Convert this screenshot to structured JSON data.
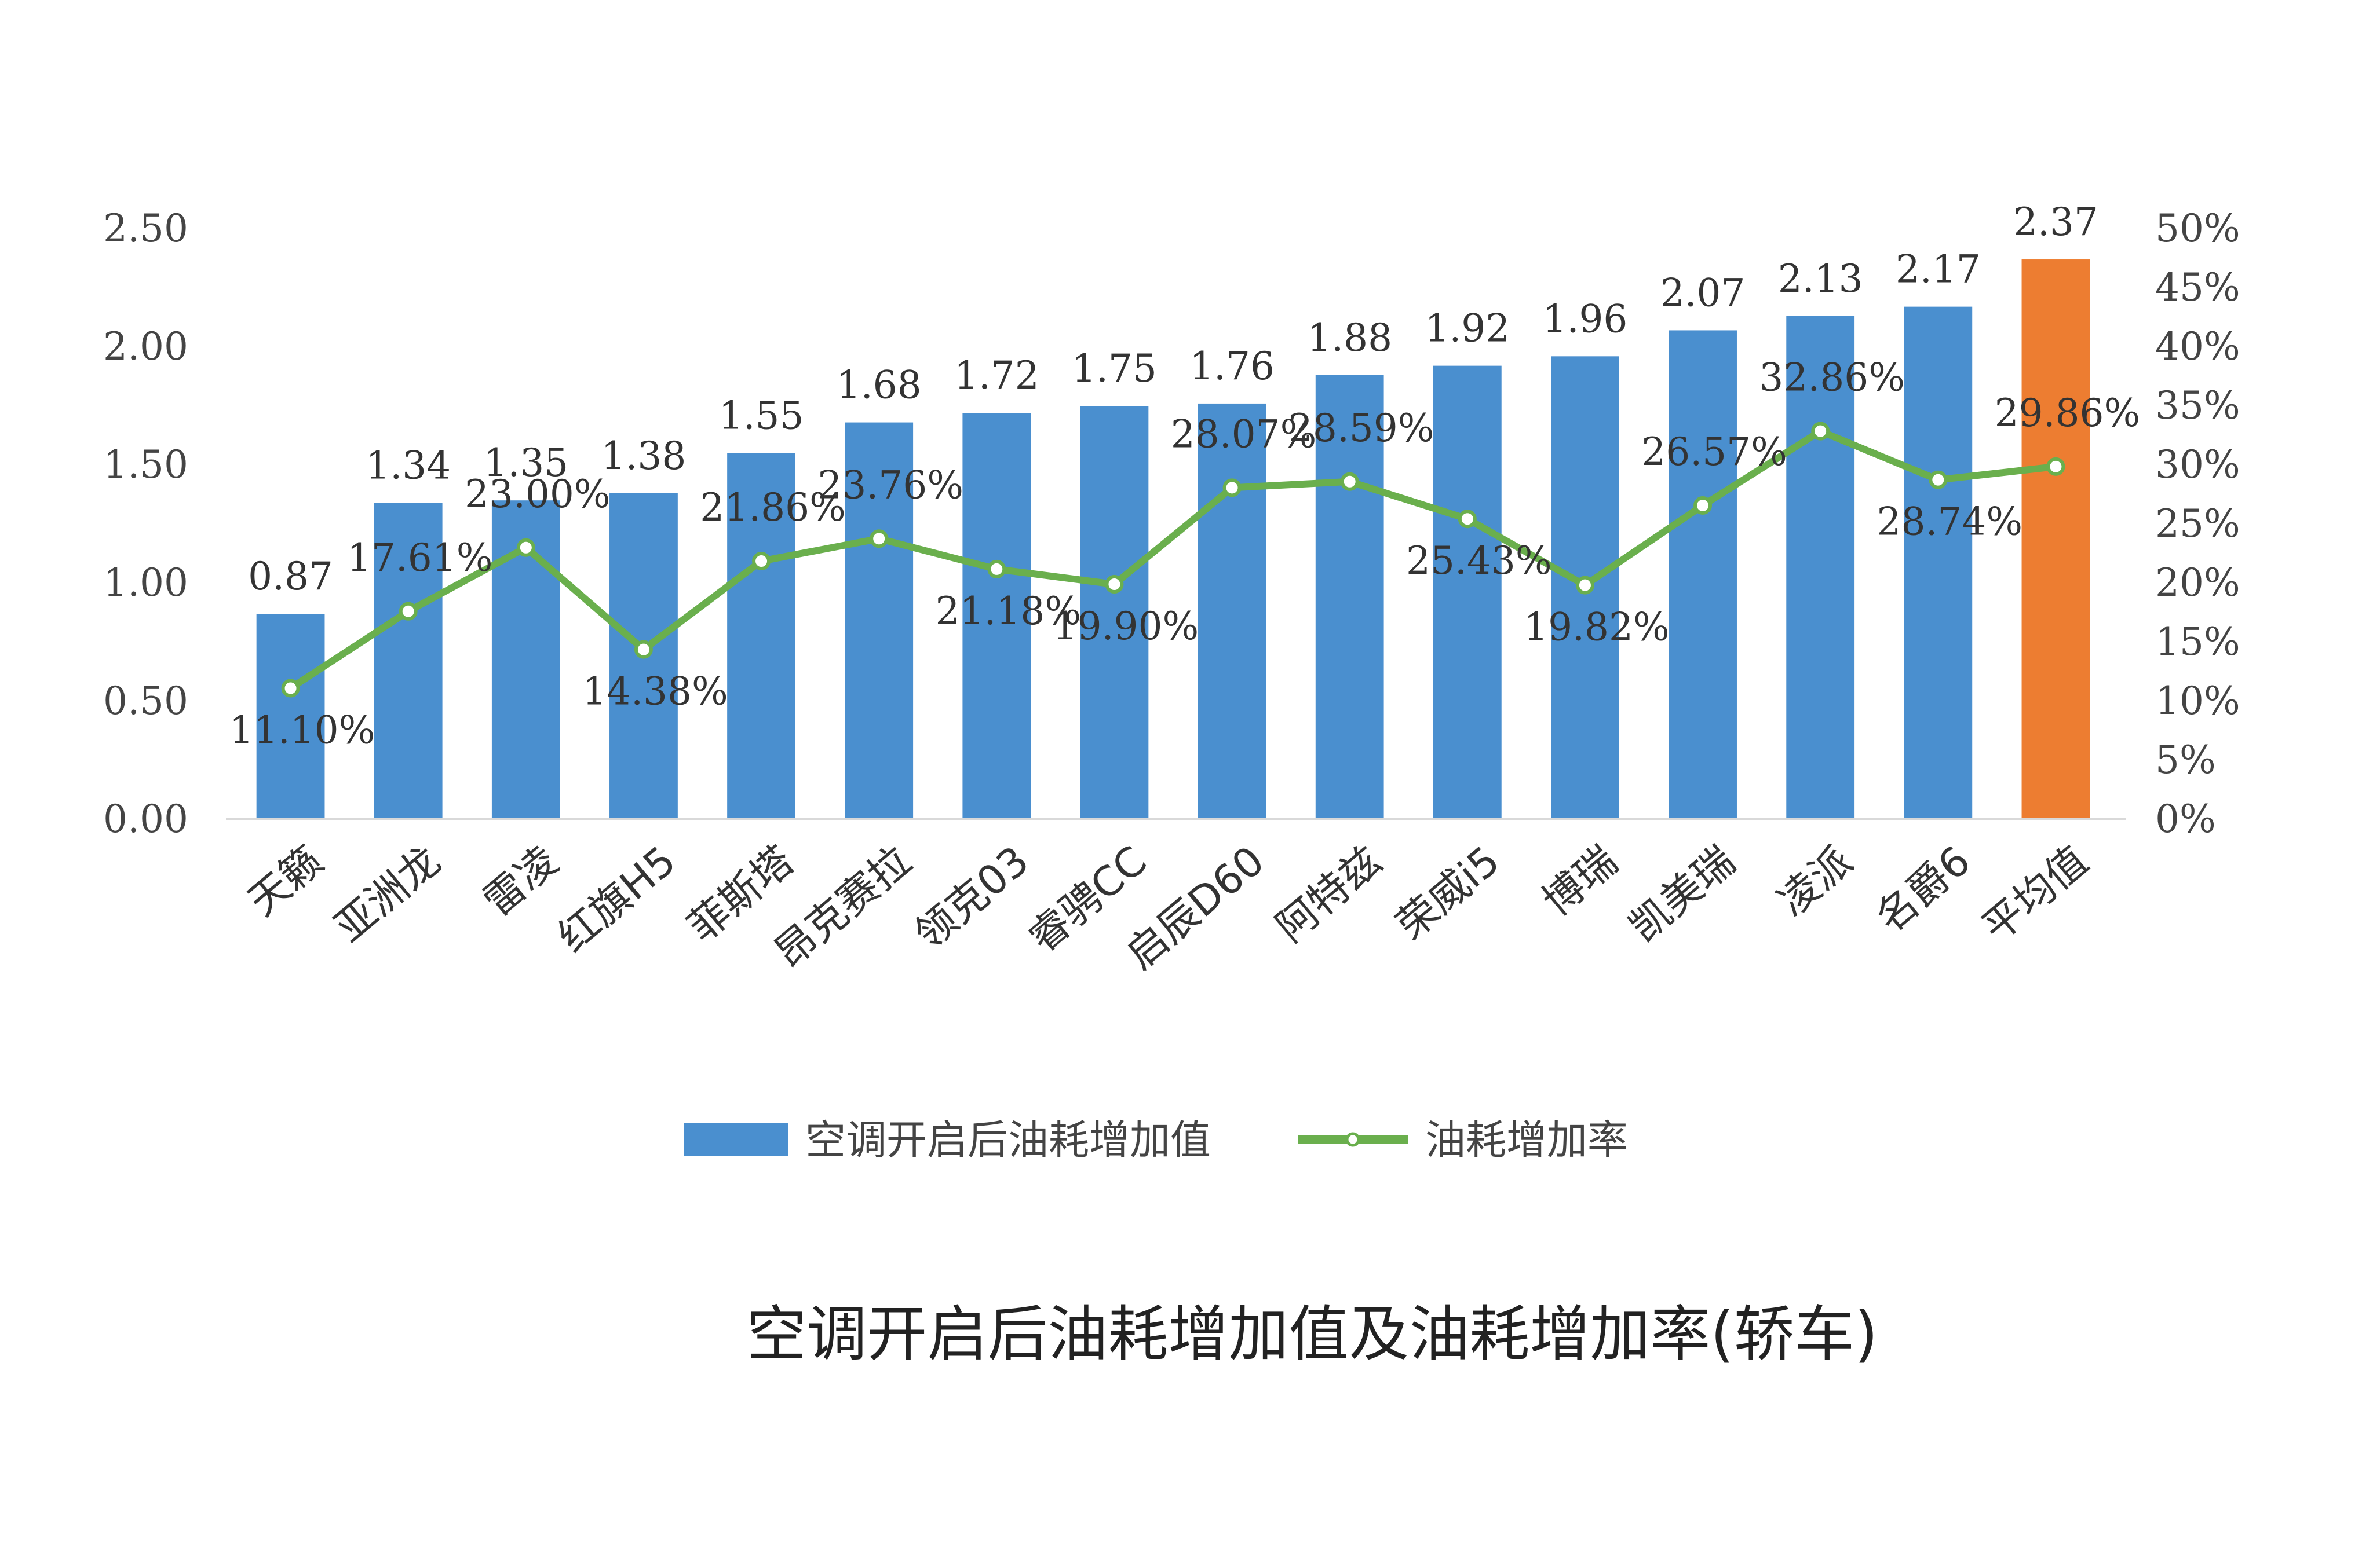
{
  "chart_data": {
    "type": "bar",
    "title": "空调开启后油耗增加值及油耗增加率(轿车)",
    "categories": [
      "天籁",
      "亚洲龙",
      "雷凌",
      "红旗H5",
      "菲斯塔",
      "昂克赛拉",
      "领克03",
      "睿骋CC",
      "启辰D60",
      "阿特兹",
      "荣威i5",
      "博瑞",
      "凯美瑞",
      "凌派",
      "名爵6",
      "平均值"
    ],
    "series": [
      {
        "name": "空调开启后油耗增加值",
        "type": "bar",
        "axis": "left",
        "values": [
          0.87,
          1.34,
          1.35,
          1.38,
          1.55,
          1.68,
          1.72,
          1.75,
          1.76,
          1.88,
          1.92,
          1.96,
          2.07,
          2.13,
          2.17,
          2.37
        ],
        "labels": [
          "0.87",
          "1.34",
          "1.35",
          "1.38",
          "1.55",
          "1.68",
          "1.72",
          "1.75",
          "1.76",
          "1.88",
          "1.92",
          "1.96",
          "2.07",
          "2.13",
          "2.17",
          "2.37"
        ],
        "color": "#4A8FCF",
        "highlight_color": "#ED7D31"
      },
      {
        "name": "油耗增加率",
        "type": "line",
        "axis": "right",
        "values": [
          11.1,
          17.61,
          23.0,
          14.38,
          21.86,
          23.76,
          21.18,
          19.9,
          28.07,
          28.59,
          25.43,
          19.82,
          26.57,
          32.86,
          28.74,
          29.86
        ],
        "labels": [
          "11.10%",
          "17.61%",
          "23.00%",
          "14.38%",
          "21.86%",
          "23.76%",
          "21.18%",
          "19.90%",
          "28.07%",
          "28.59%",
          "25.43%",
          "19.82%",
          "26.57%",
          "32.86%",
          "28.74%",
          "29.86%"
        ],
        "color": "#6AAF4D"
      }
    ],
    "y_left": {
      "ylim": [
        0,
        2.5
      ],
      "ticks": [
        "0.00",
        "0.50",
        "1.00",
        "1.50",
        "2.00",
        "2.50"
      ]
    },
    "y_right": {
      "ylim": [
        0,
        50
      ],
      "ticks": [
        "0%",
        "5%",
        "10%",
        "15%",
        "20%",
        "25%",
        "30%",
        "35%",
        "40%",
        "45%",
        "50%"
      ]
    },
    "grid": false,
    "legend": {
      "position": "bottom"
    }
  }
}
